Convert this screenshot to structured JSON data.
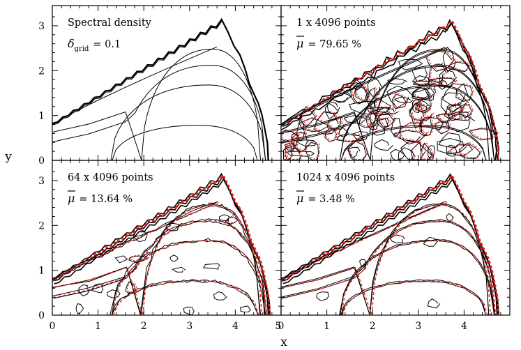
{
  "chart_data": {
    "type": "contour",
    "layout": "2x2 panels, shared axes",
    "xlabel": "x",
    "ylabel": "y",
    "xlim": [
      0,
      5
    ],
    "ylim": [
      0,
      3.45
    ],
    "xticks": [
      "0",
      "1",
      "2",
      "3",
      "4",
      "5"
    ],
    "yticks": [
      "0",
      "1",
      "2",
      "3"
    ],
    "colors": {
      "reference": "#000000",
      "estimate": "#e0201b"
    },
    "boundary": {
      "peak": [
        3.7,
        3.08
      ],
      "left_edge_y": 0.8,
      "right_edge_x": 4.72
    },
    "contour_levels_y_on_axis": [
      0.79,
      0.63,
      0.41
    ],
    "inner_contours": [
      {
        "xc": 3.5,
        "w": 1.0,
        "ymax": 2.48
      },
      {
        "xc": 3.47,
        "w": 1.22,
        "ymax": 2.12
      },
      {
        "xc": 3.42,
        "w": 1.38,
        "ymax": 1.68
      },
      {
        "xc": 3.2,
        "w": 1.22,
        "ymax": 0.78
      }
    ],
    "panels": [
      {
        "title": "Spectral density",
        "subtitle_symbol": "δ",
        "subtitle_sub": "grid",
        "subtitle_value": "= 0.1",
        "mu": null
      },
      {
        "title": "1 x 4096 points",
        "subtitle_symbol": "μ",
        "subtitle_sub": "",
        "subtitle_value": "= 79.65 %",
        "mu": 79.65
      },
      {
        "title": "64 x 4096 points",
        "subtitle_symbol": "μ",
        "subtitle_sub": "",
        "subtitle_value": "= 13.64 %",
        "mu": 13.64
      },
      {
        "title": "1024 x 4096 points",
        "subtitle_symbol": "μ",
        "subtitle_sub": "",
        "subtitle_value": "= 3.48 %",
        "mu": 3.48
      }
    ]
  }
}
